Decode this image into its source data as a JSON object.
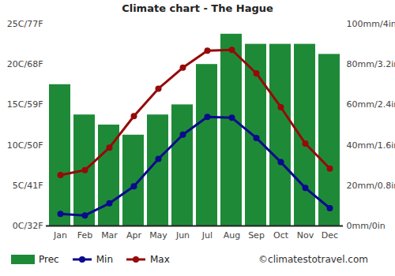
{
  "chart_data": {
    "type": "bar",
    "title": "Climate chart - The Hague",
    "annotations": [
      "©climatestotravel.com"
    ],
    "categories": [
      "Jan",
      "Feb",
      "Mar",
      "Apr",
      "May",
      "Jun",
      "Jul",
      "Aug",
      "Sep",
      "Oct",
      "Nov",
      "Dec"
    ],
    "series": [
      {
        "name": "Prec",
        "type": "bar",
        "axis": "y2",
        "color": "#1e8a38",
        "values": [
          70,
          55,
          50,
          45,
          55,
          60,
          80,
          95,
          90,
          90,
          90,
          85
        ]
      },
      {
        "name": "Min",
        "type": "line",
        "marker": "circle",
        "color": "#0a0a8c",
        "values": [
          1.5,
          1.3,
          2.8,
          4.9,
          8.3,
          11.3,
          13.5,
          13.4,
          10.9,
          7.9,
          4.7,
          2.2
        ]
      },
      {
        "name": "Max",
        "type": "line",
        "marker": "circle",
        "color": "#960a0a",
        "values": [
          6.3,
          6.9,
          9.7,
          13.6,
          17.0,
          19.6,
          21.7,
          21.8,
          18.9,
          14.7,
          10.2,
          7.1
        ]
      }
    ],
    "ylim": [
      0,
      25
    ],
    "yticks": [
      {
        "value": 0,
        "label": "0C/32F"
      },
      {
        "value": 5,
        "label": "5C/41F"
      },
      {
        "value": 10,
        "label": "10C/50F"
      },
      {
        "value": 15,
        "label": "15C/59F"
      },
      {
        "value": 20,
        "label": "20C/68F"
      },
      {
        "value": 25,
        "label": "25C/77F"
      }
    ],
    "y2lim": [
      0,
      100
    ],
    "y2ticks": [
      {
        "value": 0,
        "label": "0mm/0in"
      },
      {
        "value": 20,
        "label": "20mm/0.8in"
      },
      {
        "value": 40,
        "label": "40mm/1.6in"
      },
      {
        "value": 60,
        "label": "60mm/2.4in"
      },
      {
        "value": 80,
        "label": "80mm/3.2in"
      },
      {
        "value": 100,
        "label": "100mm/4in"
      }
    ],
    "grid": false,
    "legend": "bottom"
  }
}
